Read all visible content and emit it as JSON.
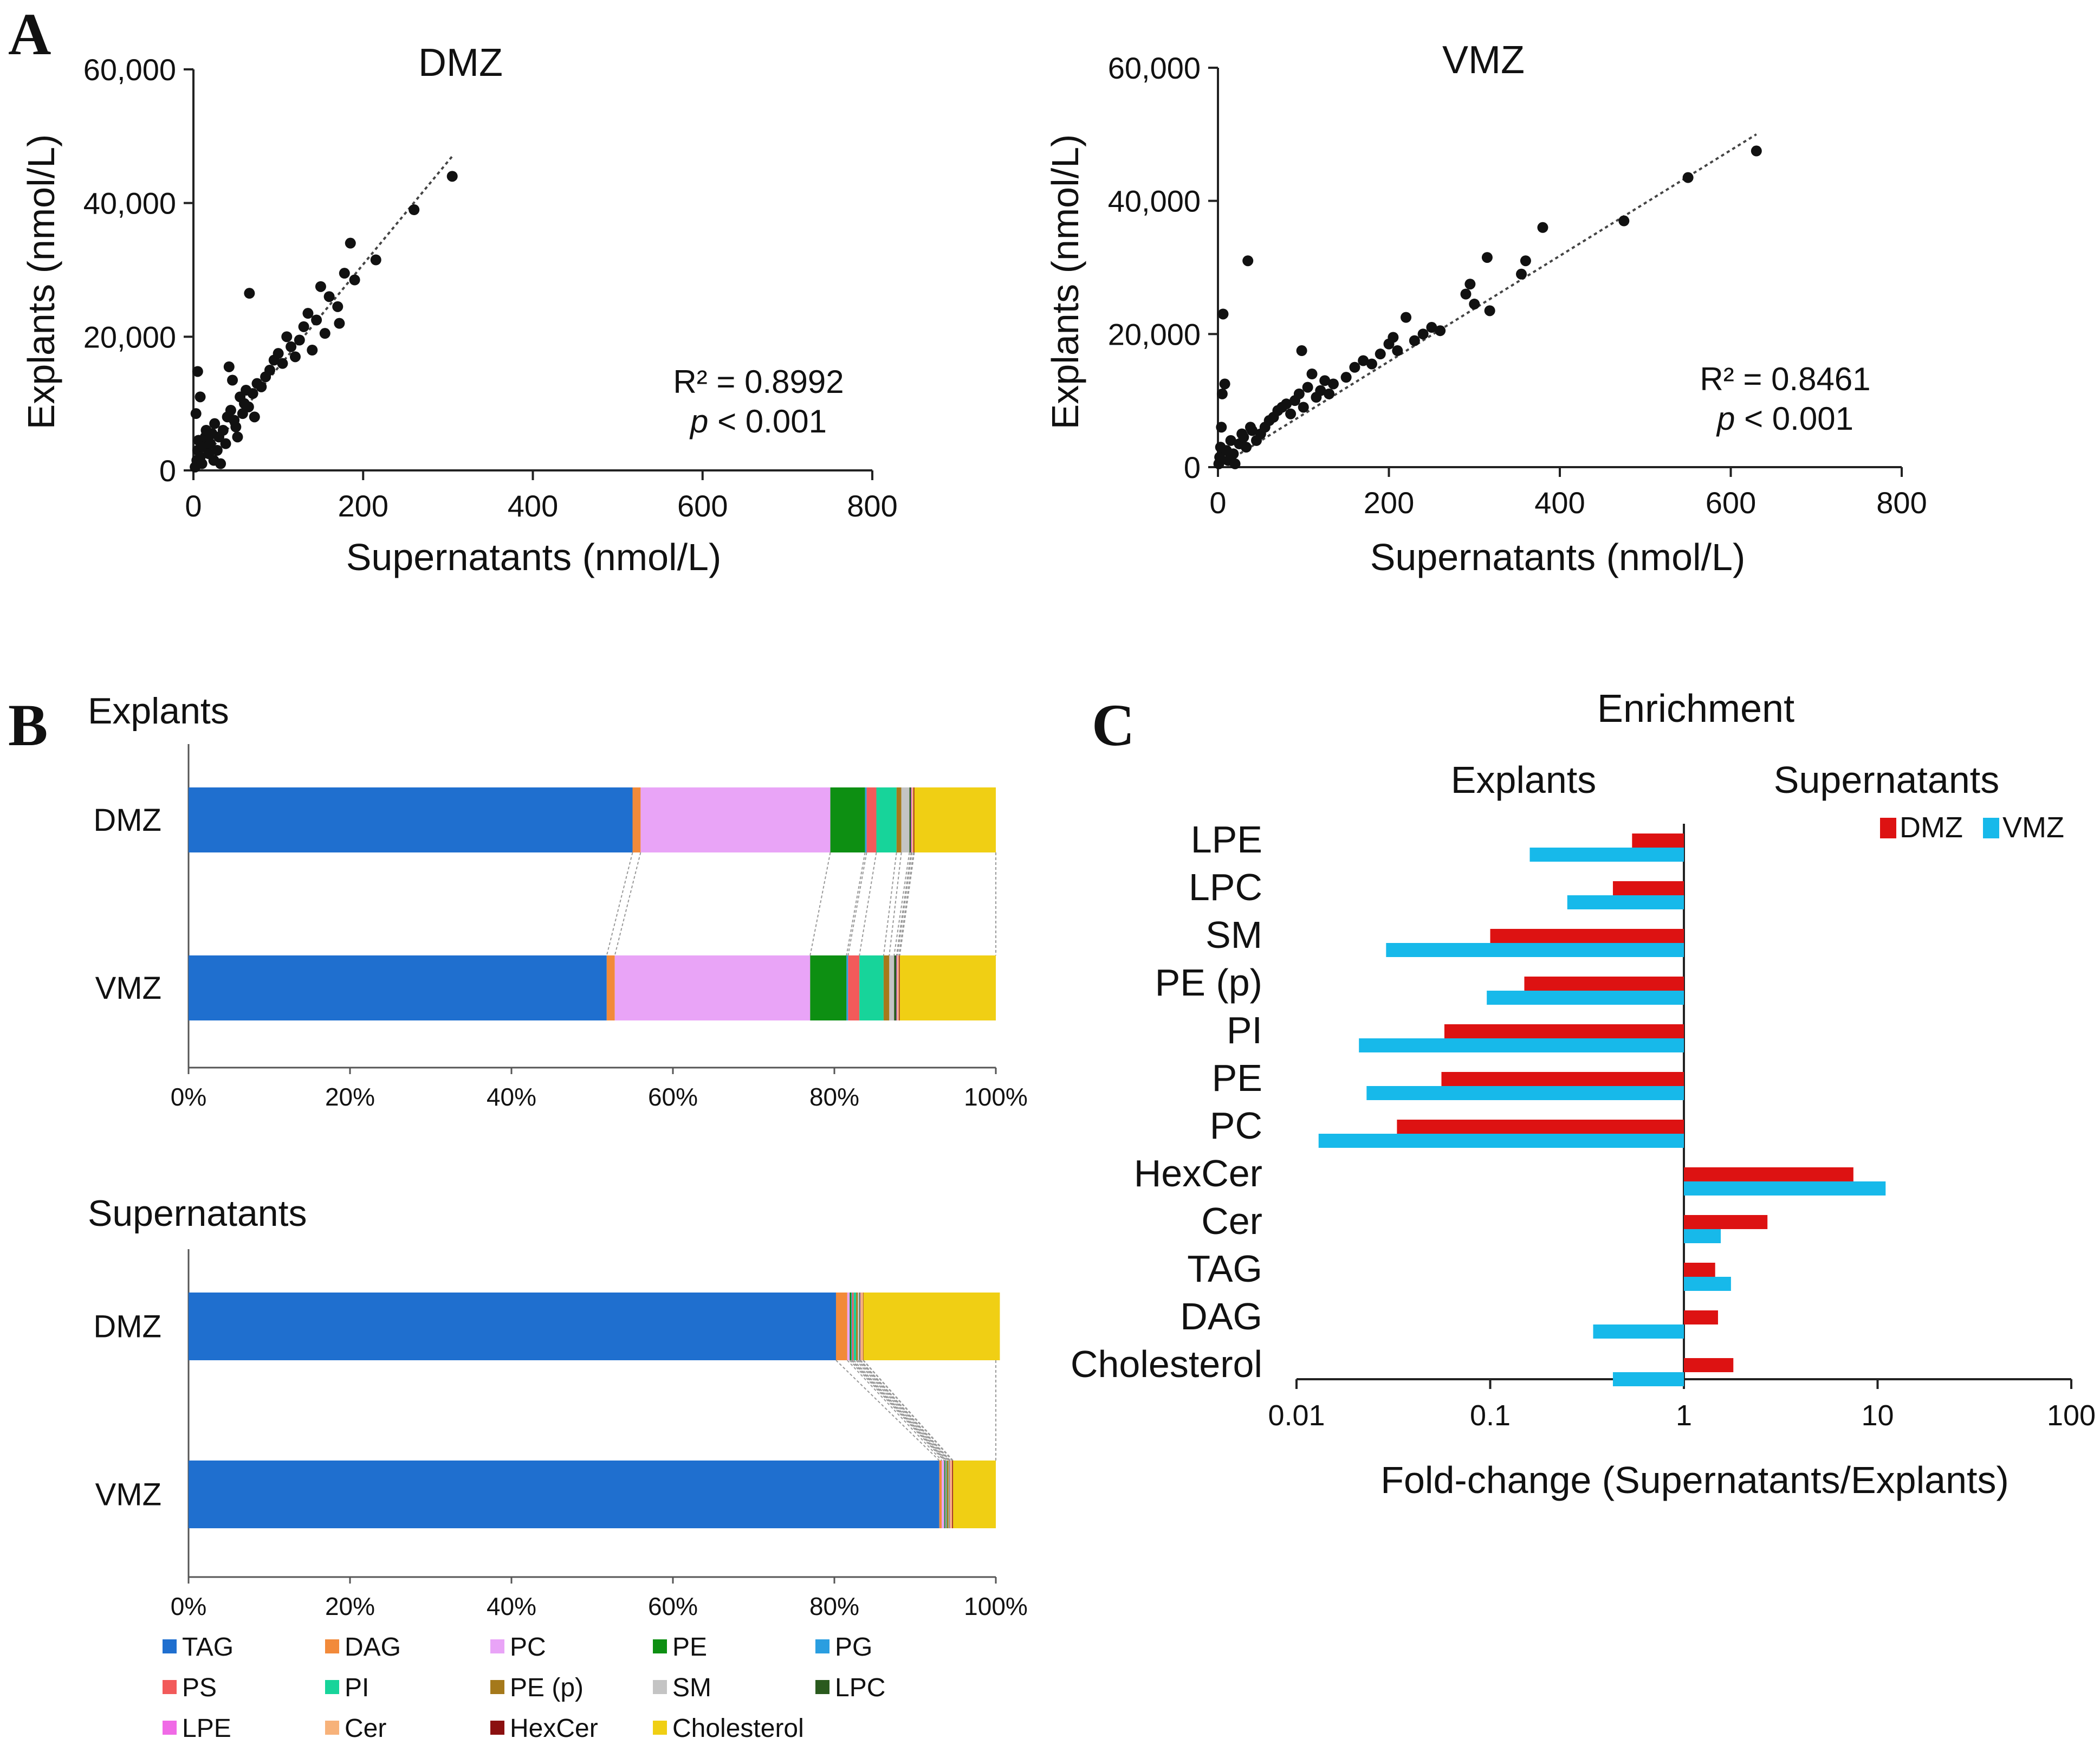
{
  "panels": {
    "a": "A",
    "b": "B",
    "c": "C"
  },
  "chart_data": [
    {
      "type": "scatter",
      "id": "scatter_dmz",
      "title": "DMZ",
      "xlabel": "Supernatants (nmol/L)",
      "ylabel": "Explants (nmol/L)",
      "xlim": [
        0,
        800
      ],
      "ylim": [
        0,
        60000
      ],
      "xticks": [
        "0",
        "200",
        "400",
        "600",
        "800"
      ],
      "yticks": [
        "0",
        "20,000",
        "40,000",
        "60,000"
      ],
      "r2_text": "R² = 0.8992",
      "p_italic": "p",
      "p_rest": " < 0.001",
      "trendline": [
        [
          0,
          0
        ],
        [
          305,
          47000
        ]
      ],
      "points": [
        [
          2,
          500
        ],
        [
          4,
          1500
        ],
        [
          5,
          3000
        ],
        [
          6,
          4500
        ],
        [
          8,
          2000
        ],
        [
          10,
          1000
        ],
        [
          3,
          8500
        ],
        [
          5,
          14800
        ],
        [
          8,
          11000
        ],
        [
          12,
          3500
        ],
        [
          14,
          5000
        ],
        [
          15,
          6000
        ],
        [
          18,
          2500
        ],
        [
          20,
          4000
        ],
        [
          22,
          5500
        ],
        [
          24,
          1500
        ],
        [
          25,
          7000
        ],
        [
          28,
          3000
        ],
        [
          30,
          5000
        ],
        [
          32,
          1000
        ],
        [
          35,
          6000
        ],
        [
          38,
          4000
        ],
        [
          40,
          8000
        ],
        [
          42,
          15500
        ],
        [
          44,
          9000
        ],
        [
          46,
          13500
        ],
        [
          48,
          7500
        ],
        [
          50,
          6500
        ],
        [
          52,
          5000
        ],
        [
          55,
          11000
        ],
        [
          58,
          8500
        ],
        [
          60,
          10000
        ],
        [
          62,
          12000
        ],
        [
          65,
          9500
        ],
        [
          66,
          26500
        ],
        [
          70,
          11500
        ],
        [
          72,
          8000
        ],
        [
          75,
          13000
        ],
        [
          80,
          12500
        ],
        [
          85,
          14000
        ],
        [
          90,
          15000
        ],
        [
          95,
          16500
        ],
        [
          100,
          17500
        ],
        [
          105,
          16000
        ],
        [
          110,
          20000
        ],
        [
          115,
          18500
        ],
        [
          120,
          17000
        ],
        [
          125,
          19500
        ],
        [
          130,
          21500
        ],
        [
          135,
          23500
        ],
        [
          140,
          18000
        ],
        [
          145,
          22500
        ],
        [
          150,
          27500
        ],
        [
          155,
          20500
        ],
        [
          160,
          26000
        ],
        [
          170,
          24500
        ],
        [
          172,
          22000
        ],
        [
          178,
          29500
        ],
        [
          185,
          34000
        ],
        [
          190,
          28500
        ],
        [
          215,
          31500
        ],
        [
          260,
          39000
        ],
        [
          305,
          44000
        ]
      ]
    },
    {
      "type": "scatter",
      "id": "scatter_vmz",
      "title": "VMZ",
      "xlabel": "Supernatants (nmol/L)",
      "ylabel": "Explants (nmol/L)",
      "xlim": [
        0,
        800
      ],
      "ylim": [
        0,
        60000
      ],
      "xticks": [
        "0",
        "200",
        "400",
        "600",
        "800"
      ],
      "yticks": [
        "0",
        "20,000",
        "40,000",
        "60,000"
      ],
      "r2_text": "R² = 0.8461",
      "p_italic": "p",
      "p_rest": " < 0.001",
      "trendline": [
        [
          0,
          0
        ],
        [
          630,
          50000
        ]
      ],
      "points": [
        [
          1,
          500
        ],
        [
          2,
          1500
        ],
        [
          3,
          3000
        ],
        [
          4,
          6000
        ],
        [
          5,
          11000
        ],
        [
          6,
          23000
        ],
        [
          8,
          12500
        ],
        [
          10,
          2500
        ],
        [
          12,
          1000
        ],
        [
          15,
          4000
        ],
        [
          18,
          2000
        ],
        [
          20,
          500
        ],
        [
          25,
          3500
        ],
        [
          28,
          5000
        ],
        [
          30,
          4500
        ],
        [
          33,
          3000
        ],
        [
          35,
          31000
        ],
        [
          38,
          6000
        ],
        [
          40,
          5500
        ],
        [
          45,
          4000
        ],
        [
          50,
          5000
        ],
        [
          55,
          6000
        ],
        [
          60,
          7000
        ],
        [
          65,
          7500
        ],
        [
          70,
          8500
        ],
        [
          75,
          9000
        ],
        [
          80,
          9500
        ],
        [
          85,
          8000
        ],
        [
          90,
          10000
        ],
        [
          95,
          11000
        ],
        [
          98,
          17500
        ],
        [
          100,
          9000
        ],
        [
          105,
          12000
        ],
        [
          110,
          14000
        ],
        [
          115,
          10500
        ],
        [
          120,
          11500
        ],
        [
          125,
          13000
        ],
        [
          130,
          11000
        ],
        [
          135,
          12500
        ],
        [
          150,
          13500
        ],
        [
          160,
          15000
        ],
        [
          170,
          16000
        ],
        [
          180,
          15500
        ],
        [
          190,
          17000
        ],
        [
          200,
          18500
        ],
        [
          205,
          19500
        ],
        [
          210,
          17500
        ],
        [
          220,
          22500
        ],
        [
          230,
          19000
        ],
        [
          240,
          20000
        ],
        [
          250,
          21000
        ],
        [
          260,
          20500
        ],
        [
          290,
          26000
        ],
        [
          295,
          27500
        ],
        [
          300,
          24500
        ],
        [
          315,
          31500
        ],
        [
          318,
          23500
        ],
        [
          355,
          29000
        ],
        [
          360,
          31000
        ],
        [
          380,
          36000
        ],
        [
          475,
          37000
        ],
        [
          550,
          43500
        ],
        [
          630,
          47500
        ]
      ]
    },
    {
      "type": "stacked_bar",
      "id": "bar_explants",
      "title": "Explants",
      "categories": [
        "DMZ",
        "VMZ"
      ],
      "xticks": [
        "0%",
        "20%",
        "40%",
        "60%",
        "80%",
        "100%"
      ],
      "segments": [
        {
          "name": "TAG",
          "values": [
            55.0,
            51.8
          ]
        },
        {
          "name": "DAG",
          "values": [
            1.0,
            1.0
          ]
        },
        {
          "name": "PC",
          "values": [
            23.5,
            24.2
          ]
        },
        {
          "name": "PE",
          "values": [
            4.3,
            4.5
          ]
        },
        {
          "name": "PG",
          "values": [
            0.2,
            0.2
          ]
        },
        {
          "name": "PS",
          "values": [
            1.2,
            1.4
          ]
        },
        {
          "name": "PI",
          "values": [
            2.5,
            3.0
          ]
        },
        {
          "name": "PE (p)",
          "values": [
            0.6,
            0.7
          ]
        },
        {
          "name": "SM",
          "values": [
            1.0,
            0.6
          ]
        },
        {
          "name": "LPC",
          "values": [
            0.2,
            0.3
          ]
        },
        {
          "name": "LPE",
          "values": [
            0.1,
            0.1
          ]
        },
        {
          "name": "Cer",
          "values": [
            0.2,
            0.2
          ]
        },
        {
          "name": "HexCer",
          "values": [
            0.1,
            0.1
          ]
        },
        {
          "name": "Cholesterol",
          "values": [
            10.1,
            11.9
          ]
        }
      ]
    },
    {
      "type": "stacked_bar",
      "id": "bar_supernatants",
      "title": "Supernatants",
      "categories": [
        "DMZ",
        "VMZ"
      ],
      "xticks": [
        "0%",
        "20%",
        "40%",
        "60%",
        "80%",
        "100%"
      ],
      "segments": [
        {
          "name": "TAG",
          "values": [
            80.2,
            93.0
          ]
        },
        {
          "name": "DAG",
          "values": [
            1.4,
            0.3
          ]
        },
        {
          "name": "PC",
          "values": [
            0.3,
            0.3
          ]
        },
        {
          "name": "PE",
          "values": [
            0.2,
            0.1
          ]
        },
        {
          "name": "PG",
          "values": [
            0.1,
            0.05
          ]
        },
        {
          "name": "PS",
          "values": [
            0.2,
            0.1
          ]
        },
        {
          "name": "PI",
          "values": [
            0.3,
            0.1
          ]
        },
        {
          "name": "PE (p)",
          "values": [
            0.2,
            0.2
          ]
        },
        {
          "name": "SM",
          "values": [
            0.2,
            0.1
          ]
        },
        {
          "name": "LPC",
          "values": [
            0.1,
            0.05
          ]
        },
        {
          "name": "LPE",
          "values": [
            0.05,
            0.05
          ]
        },
        {
          "name": "Cer",
          "values": [
            0.3,
            0.25
          ]
        },
        {
          "name": "HexCer",
          "values": [
            0.05,
            0.1
          ]
        },
        {
          "name": "Cholesterol",
          "values": [
            16.9,
            5.3
          ]
        }
      ]
    },
    {
      "type": "bar",
      "id": "enrichment",
      "orientation": "horizontal",
      "title": "Enrichment",
      "left_label": "Explants",
      "right_label": "Supernatants",
      "xlabel": "Fold-change (Supernatants/Explants)",
      "xscale": "log",
      "xlim": [
        0.01,
        100
      ],
      "xticks": [
        "0.01",
        "0.1",
        "1",
        "10",
        "100"
      ],
      "categories": [
        "LPE",
        "LPC",
        "SM",
        "PE (p)",
        "PI",
        "PE",
        "PC",
        "HexCer",
        "Cer",
        "TAG",
        "DAG",
        "Cholesterol"
      ],
      "series": [
        {
          "name": "DMZ",
          "values": [
            0.54,
            0.43,
            0.1,
            0.15,
            0.058,
            0.056,
            0.033,
            7.5,
            2.7,
            1.45,
            1.5,
            1.8
          ]
        },
        {
          "name": "VMZ",
          "values": [
            0.16,
            0.25,
            0.029,
            0.096,
            0.021,
            0.023,
            0.013,
            11,
            1.55,
            1.75,
            0.34,
            0.43
          ]
        }
      ]
    }
  ],
  "legend": {
    "items": [
      {
        "name": "TAG",
        "color": "#1f6fcf"
      },
      {
        "name": "DAG",
        "color": "#f28a3a"
      },
      {
        "name": "PC",
        "color": "#e9a4f7"
      },
      {
        "name": "PE",
        "color": "#0d8f12"
      },
      {
        "name": "PG",
        "color": "#2a9ee0"
      },
      {
        "name": "PS",
        "color": "#f25a5a"
      },
      {
        "name": "PI",
        "color": "#17d49a"
      },
      {
        "name": "PE (p)",
        "color": "#a5791b"
      },
      {
        "name": "SM",
        "color": "#c4c4c4"
      },
      {
        "name": "LPC",
        "color": "#2a5a1e"
      },
      {
        "name": "LPE",
        "color": "#f06ae6"
      },
      {
        "name": "Cer",
        "color": "#f7b27a"
      },
      {
        "name": "HexCer",
        "color": "#8b1010"
      },
      {
        "name": "Cholesterol",
        "color": "#f0cf14"
      }
    ]
  },
  "colors": {
    "dmz": "#dd1212",
    "vmz": "#17b9ea",
    "points": "#111111"
  }
}
